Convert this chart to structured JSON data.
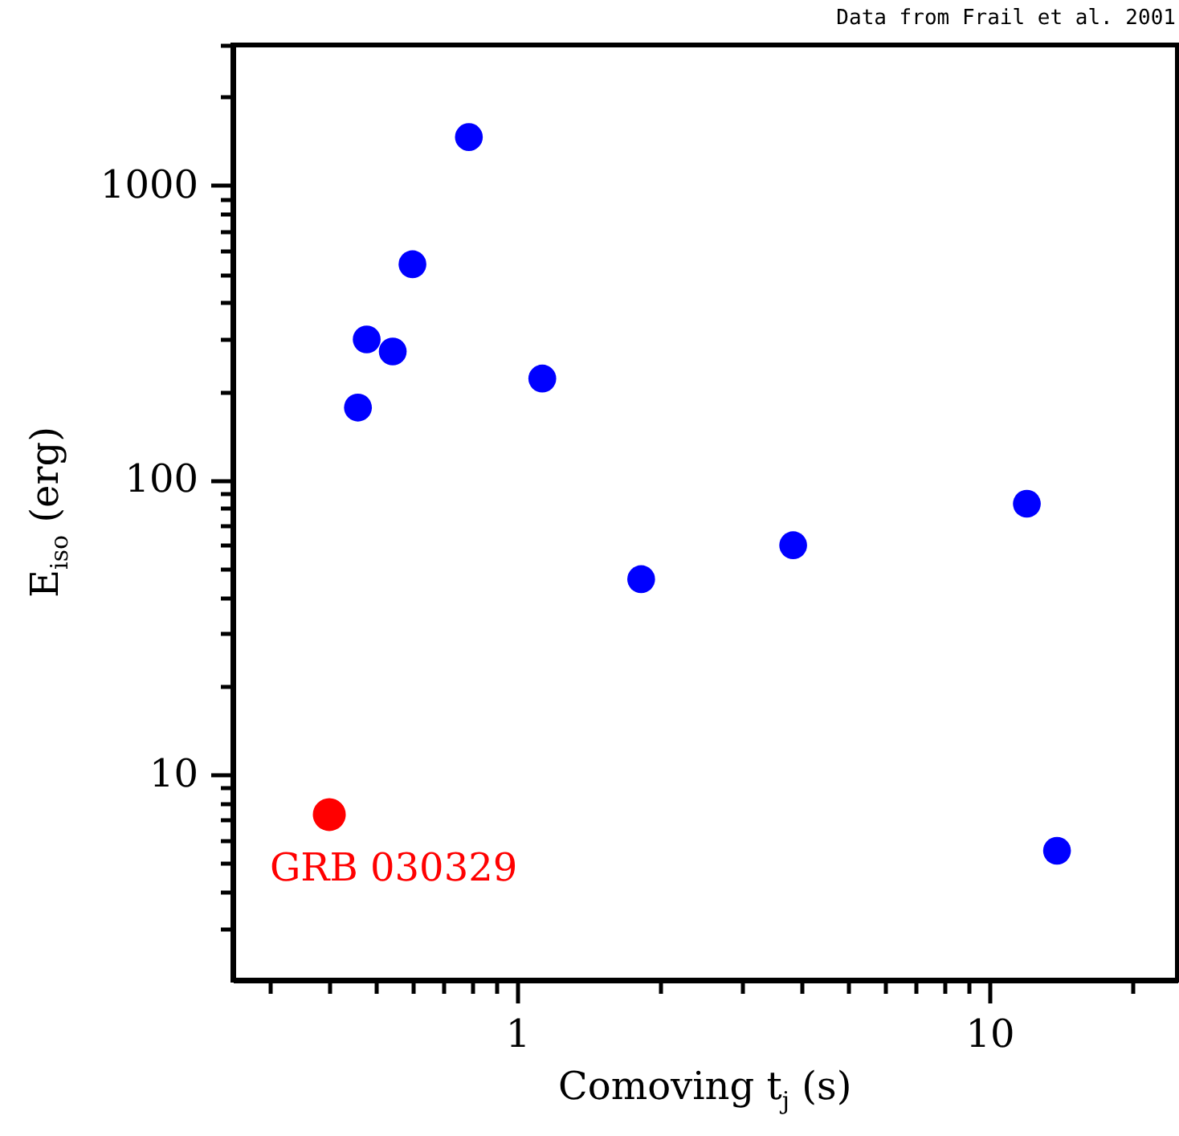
{
  "chart_data": {
    "type": "scatter",
    "xlabel": "Comoving t$_{j}$ (s)",
    "ylabel": "E$_{iso}$ (erg)",
    "xlim": [
      0.25,
      25
    ],
    "ylim": [
      2,
      3000
    ],
    "log": "xy",
    "grid": false,
    "legend": false,
    "marker": "circle",
    "xticks": [
      {
        "value": 0.3,
        "label": null
      },
      {
        "value": 0.4,
        "label": null
      },
      {
        "value": 0.5,
        "label": null
      },
      {
        "value": 0.6,
        "label": null
      },
      {
        "value": 0.7,
        "label": null
      },
      {
        "value": 0.8,
        "label": null
      },
      {
        "value": 0.9,
        "label": null
      },
      1,
      {
        "value": 2,
        "label": null
      },
      {
        "value": 3,
        "label": null
      },
      {
        "value": 4,
        "label": null
      },
      {
        "value": 5,
        "label": null
      },
      {
        "value": 6,
        "label": null
      },
      {
        "value": 7,
        "label": null
      },
      {
        "value": 8,
        "label": null
      },
      {
        "value": 9,
        "label": null
      },
      10,
      {
        "value": 20,
        "label": null
      }
    ],
    "yticks": [
      {
        "value": 3,
        "label": null
      },
      {
        "value": 4,
        "label": null
      },
      {
        "value": 5,
        "label": null
      },
      {
        "value": 6,
        "label": null
      },
      {
        "value": 7,
        "label": null
      },
      {
        "value": 8,
        "label": null
      },
      {
        "value": 9,
        "label": null
      },
      10,
      {
        "value": 20,
        "label": null
      },
      {
        "value": 30,
        "label": null
      },
      {
        "value": 40,
        "label": null
      },
      {
        "value": 50,
        "label": null
      },
      {
        "value": 60,
        "label": null
      },
      {
        "value": 70,
        "label": null
      },
      {
        "value": 80,
        "label": null
      },
      {
        "value": 90,
        "label": null
      },
      100,
      {
        "value": 200,
        "label": null
      },
      {
        "value": 300,
        "label": null
      },
      {
        "value": 400,
        "label": null
      },
      {
        "value": 500,
        "label": null
      },
      {
        "value": 600,
        "label": null
      },
      {
        "value": 700,
        "label": null
      },
      {
        "value": 800,
        "label": null
      },
      {
        "value": 900,
        "label": null
      },
      1000,
      {
        "value": 2000,
        "label": null
      },
      {
        "value": 3000,
        "label": null
      }
    ],
    "series": [
      {
        "color": "#0000ff",
        "x": [
          0.79,
          0.6,
          0.48,
          0.545,
          0.46,
          1.13,
          1.83,
          3.84,
          12.0,
          13.9
        ],
        "values": [
          1460,
          540,
          300,
          273,
          176,
          221,
          46,
          60,
          83,
          5.5
        ]
      },
      {
        "color": "#ff0000",
        "x": [
          0.4
        ],
        "values": [
          7.3
        ]
      }
    ],
    "annotations": [
      "Data from Frail et al. 2001",
      {
        "text": "GRB 030329",
        "x": 0.4,
        "y": 7.3
      }
    ]
  }
}
